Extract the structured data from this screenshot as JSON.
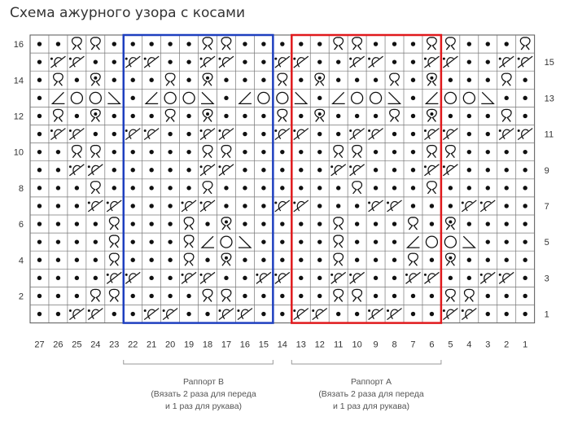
{
  "title": "Схема ажурного узора с косами",
  "chart_data": {
    "type": "knitting-chart",
    "columns": 27,
    "rows": 16,
    "column_numbers": [
      "27",
      "26",
      "25",
      "24",
      "23",
      "22",
      "21",
      "20",
      "19",
      "18",
      "17",
      "16",
      "15",
      "14",
      "13",
      "12",
      "11",
      "10",
      "9",
      "8",
      "7",
      "6",
      "5",
      "4",
      "3",
      "2",
      "1"
    ],
    "row_numbers_left": [
      "2",
      "4",
      "6",
      "8",
      "10",
      "12",
      "14",
      "16"
    ],
    "row_numbers_right": [
      "1",
      "3",
      "5",
      "7",
      "9",
      "11",
      "13",
      "15"
    ],
    "repeats": [
      {
        "name": "Раппорт В",
        "color": "#1e3fbf",
        "from_col": 22,
        "to_col": 15,
        "note_line1": "(Вязать 2 раза для переда",
        "note_line2": "и 1 раз для рукава)"
      },
      {
        "name": "Раппорт А",
        "color": "#e0191c",
        "from_col": 13,
        "to_col": 6,
        "note_line1": "(Вязать 2 раза для переда",
        "note_line2": "и 1 раз для рукава)"
      }
    ],
    "legend_codes": {
      ".": "dot",
      "P": "loop",
      "O": "yarn-over",
      "T": "loop-with-dot",
      "L": "k2tog-left",
      "R": "ssk-right",
      "C": "cross",
      "-": "blank"
    },
    "grid": [
      "..PP.....PP.....PP...PP...P",
      ".CC..CC..CC..CC..CC..CC..CC",
      ".P.T...P.T...P.T...P.T...P.",
      ".LOOR.LOOR.LOOR.LOOR.LOOR..",
      ".P.T...P.T...P.T...P.T...P.",
      ".CC..CC..CC..CC..CC..CC..CC",
      "..PP.....PP.....PP...PP....",
      "..CC.....CC.....CC...CC....",
      "...P.....P.......P...P.....",
      "...CC...CC...CC...CC...CC..",
      "....P...P.T.....P...P.T....",
      "....P...PLOR....P...LOOR...",
      "....P...P.T.....P...P.T....",
      "....CC..CC..CC..CC..CC..CC.",
      "...PP....PP.....PP....PP...",
      "..CC..CC..CC..CC..CC..CC..."
    ]
  }
}
